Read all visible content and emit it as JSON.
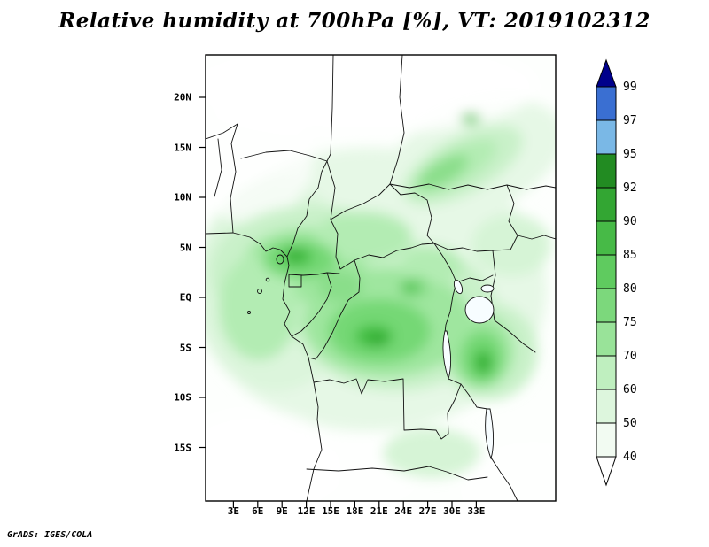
{
  "title": "Relative humidity at 700hPa [%], VT: 2019102312",
  "attribution": "GrADS: IGES/COLA",
  "axes": {
    "lat_labels": [
      "20N",
      "15N",
      "10N",
      "5N",
      "EQ",
      "5S",
      "10S",
      "15S"
    ],
    "lon_labels": [
      "3E",
      "6E",
      "9E",
      "12E",
      "15E",
      "18E",
      "21E",
      "24E",
      "27E",
      "30E",
      "33E"
    ]
  },
  "colorbar": {
    "boundary_labels": [
      "99",
      "97",
      "95",
      "92",
      "90",
      "85",
      "80",
      "75",
      "70",
      "60",
      "50",
      "40"
    ],
    "above_max_color": "#00008b",
    "segment_colors": [
      "#3a6fd2",
      "#7ab8e6",
      "#228b22",
      "#33a633",
      "#47ba47",
      "#5fcb5f",
      "#7cd87c",
      "#99e399",
      "#bfefbf",
      "#ddf6dd",
      "#f2fbf2"
    ],
    "below_min_color": "#ffffff"
  },
  "map_palette": {
    "background": "#fdfffd",
    "shade_levels": [
      "#e6f8e6",
      "#c9f1c9",
      "#9fe69f",
      "#74d874",
      "#43bf43",
      "#2aa42a"
    ]
  }
}
